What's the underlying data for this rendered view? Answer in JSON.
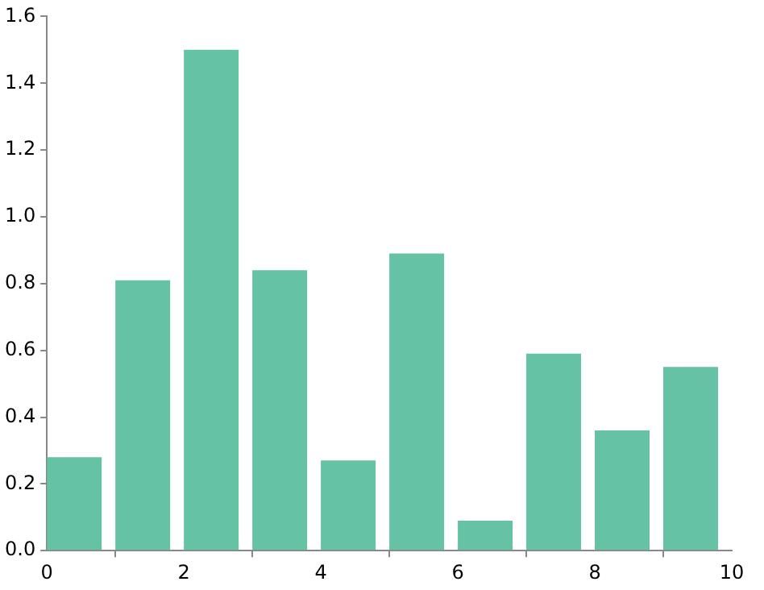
{
  "chart_data": {
    "type": "bar",
    "x": [
      0.4,
      1.4,
      2.4,
      3.4,
      4.4,
      5.4,
      6.4,
      7.4,
      8.4,
      9.4
    ],
    "values": [
      0.28,
      0.81,
      1.5,
      0.84,
      0.27,
      0.89,
      0.09,
      0.59,
      0.36,
      0.55
    ],
    "color": "#66c2a5",
    "xlim": [
      0,
      10
    ],
    "xticks": [
      0,
      2,
      4,
      6,
      8,
      10
    ],
    "ylim": [
      0,
      1.6
    ],
    "yticks": [
      {
        "value": 0,
        "label": "0.0"
      },
      {
        "value": 0.2,
        "label": "0.2"
      },
      {
        "value": 0.4,
        "label": "0.4"
      },
      {
        "value": 0.6,
        "label": "0.6"
      },
      {
        "value": 0.8,
        "label": "0.8"
      },
      {
        "value": 1,
        "label": "1.0"
      },
      {
        "value": 1.2,
        "label": "1.2"
      },
      {
        "value": 1.4,
        "label": "1.4"
      },
      {
        "value": 1.6,
        "label": "1.6"
      }
    ],
    "grid": false,
    "legend": false
  }
}
